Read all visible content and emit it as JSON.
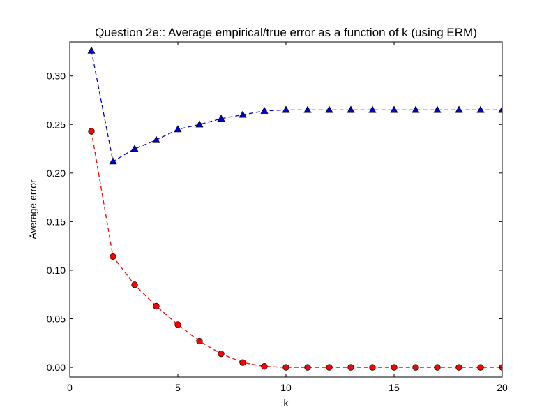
{
  "chart_data": {
    "type": "line",
    "title": "Question 2e:: Average empirical/true error as a function of k (using ERM)",
    "xlabel": "k",
    "ylabel": "Average error",
    "xlim": [
      0,
      20
    ],
    "ylim": [
      -0.01,
      0.335
    ],
    "grid": false,
    "x_ticks": [
      0,
      5,
      10,
      15,
      20
    ],
    "x_tick_labels": [
      "0",
      "5",
      "10",
      "15",
      "20"
    ],
    "y_ticks": [
      0.0,
      0.05,
      0.1,
      0.15,
      0.2,
      0.25,
      0.3
    ],
    "y_tick_labels": [
      "0.00",
      "0.05",
      "0.10",
      "0.15",
      "0.20",
      "0.25",
      "0.30"
    ],
    "x": [
      1,
      2,
      3,
      4,
      5,
      6,
      7,
      8,
      9,
      10,
      11,
      12,
      13,
      14,
      15,
      16,
      17,
      18,
      19,
      20
    ],
    "series": [
      {
        "color": "#0000cc",
        "marker": "triangle",
        "linestyle": "dashed",
        "values": [
          0.326,
          0.212,
          0.225,
          0.234,
          0.245,
          0.25,
          0.256,
          0.26,
          0.264,
          0.265,
          0.265,
          0.265,
          0.265,
          0.265,
          0.265,
          0.265,
          0.265,
          0.265,
          0.265,
          0.265
        ]
      },
      {
        "color": "#ff0000",
        "marker": "circle",
        "linestyle": "dashed",
        "values": [
          0.243,
          0.114,
          0.085,
          0.063,
          0.044,
          0.027,
          0.014,
          0.005,
          0.001,
          0.0,
          0.0,
          0.0,
          0.0,
          0.0,
          0.0,
          0.0,
          0.0,
          0.0,
          0.0,
          0.0
        ]
      }
    ]
  }
}
